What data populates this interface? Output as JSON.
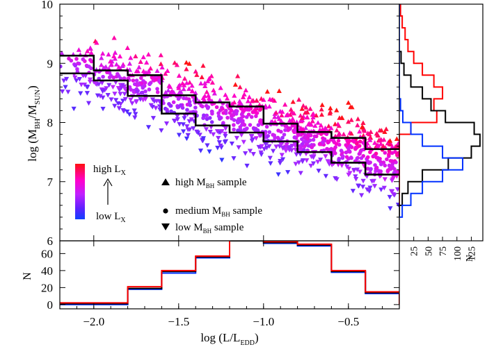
{
  "chart_data": [
    {
      "panel": "main-scatter",
      "type": "scatter",
      "ylabel": "log (M",
      "ylabel_sub1": "BH",
      "ylabel_mid": "/M",
      "ylabel_sub2": "SUN",
      "ylabel_end": ")",
      "xlim": [
        -2.2,
        -0.2
      ],
      "ylim": [
        6,
        10
      ],
      "yticks": [
        "6",
        "7",
        "8",
        "9",
        "10"
      ],
      "color_scale": {
        "top_label": "high L",
        "top_sub": "X",
        "bottom_label": "low L",
        "bottom_sub": "X",
        "colors": [
          "#ff1010",
          "#ff00cc",
          "#c020ff",
          "#6020ff",
          "#1040ff"
        ]
      },
      "legend": [
        {
          "marker": "triangle-up",
          "label": "high M",
          "sub": "BH",
          "suffix": " sample"
        },
        {
          "marker": "circle",
          "label": "medium M",
          "sub": "BH",
          "suffix": " sample"
        },
        {
          "marker": "triangle-down",
          "label": "low M",
          "sub": "BH",
          "suffix": " sample"
        }
      ],
      "bin_edges": [
        -2.2,
        -2.0,
        -1.8,
        -1.6,
        -1.4,
        -1.2,
        -1.0,
        -0.8,
        -0.6,
        -0.4,
        -0.2
      ],
      "high_threshold_steps": [
        9.13,
        8.88,
        8.8,
        8.46,
        8.34,
        8.27,
        7.98,
        7.84,
        7.74,
        7.55
      ],
      "low_threshold_steps": [
        8.83,
        8.71,
        8.45,
        8.15,
        7.95,
        7.83,
        7.68,
        7.5,
        7.32,
        7.12
      ],
      "scatter_density": [
        {
          "x_range": [
            -2.2,
            -2.0
          ],
          "y_high": 9.9,
          "y_low": 8.0
        },
        {
          "x_range": [
            -0.4,
            -0.2
          ],
          "y_high": 8.1,
          "y_low": 6.9
        }
      ]
    },
    {
      "panel": "x-histogram",
      "type": "bar",
      "xlabel": "log (L/L",
      "xlabel_sub": "EDD",
      "xlabel_end": ")",
      "ylabel": "N",
      "xticks": [
        "−2.0",
        "−1.5",
        "−1.0",
        "−0.5"
      ],
      "xtick_values": [
        -2.0,
        -1.5,
        -1.0,
        -0.5
      ],
      "yticks": [
        "0",
        "20",
        "40",
        "60"
      ],
      "ylim": [
        -5,
        75
      ],
      "bin_edges": [
        -2.2,
        -1.8,
        -1.6,
        -1.4,
        -1.2,
        -1.0,
        -0.8,
        -0.6,
        -0.4,
        -0.2
      ],
      "series": [
        {
          "color": "#0030ff",
          "values": [
            0,
            18,
            37,
            55,
            75,
            72,
            69,
            38,
            13
          ]
        },
        {
          "color": "#000000",
          "values": [
            1,
            19,
            39,
            56,
            75,
            73,
            70,
            39,
            14
          ]
        },
        {
          "color": "#ff0000",
          "values": [
            2,
            21,
            40,
            57,
            76,
            74,
            71,
            40,
            15
          ]
        }
      ]
    },
    {
      "panel": "y-histogram",
      "type": "bar",
      "xlabel": "N",
      "xticks": [
        "25",
        "50",
        "75",
        "100",
        "125"
      ],
      "xtick_values": [
        25,
        50,
        75,
        100,
        125
      ],
      "xlim": [
        0,
        145
      ],
      "bin_edges": [
        6.4,
        6.6,
        6.8,
        7.0,
        7.2,
        7.4,
        7.6,
        7.8,
        8.0,
        8.2,
        8.4,
        8.6,
        8.8,
        9.0,
        9.2,
        9.4,
        9.6,
        9.8,
        10.0
      ],
      "series": [
        {
          "color": "#ff0000",
          "values": [
            0,
            0,
            0,
            0,
            0,
            0,
            0,
            20,
            65,
            60,
            75,
            60,
            40,
            25,
            15,
            10,
            5,
            2
          ]
        },
        {
          "color": "#000000",
          "values": [
            0,
            5,
            15,
            40,
            85,
            125,
            140,
            130,
            80,
            55,
            40,
            20,
            8,
            3,
            0,
            0,
            0,
            0
          ]
        },
        {
          "color": "#0030ff",
          "values": [
            5,
            20,
            40,
            75,
            110,
            75,
            40,
            20,
            6,
            2,
            0,
            0,
            0,
            0,
            0,
            0,
            0,
            0
          ]
        }
      ]
    }
  ]
}
